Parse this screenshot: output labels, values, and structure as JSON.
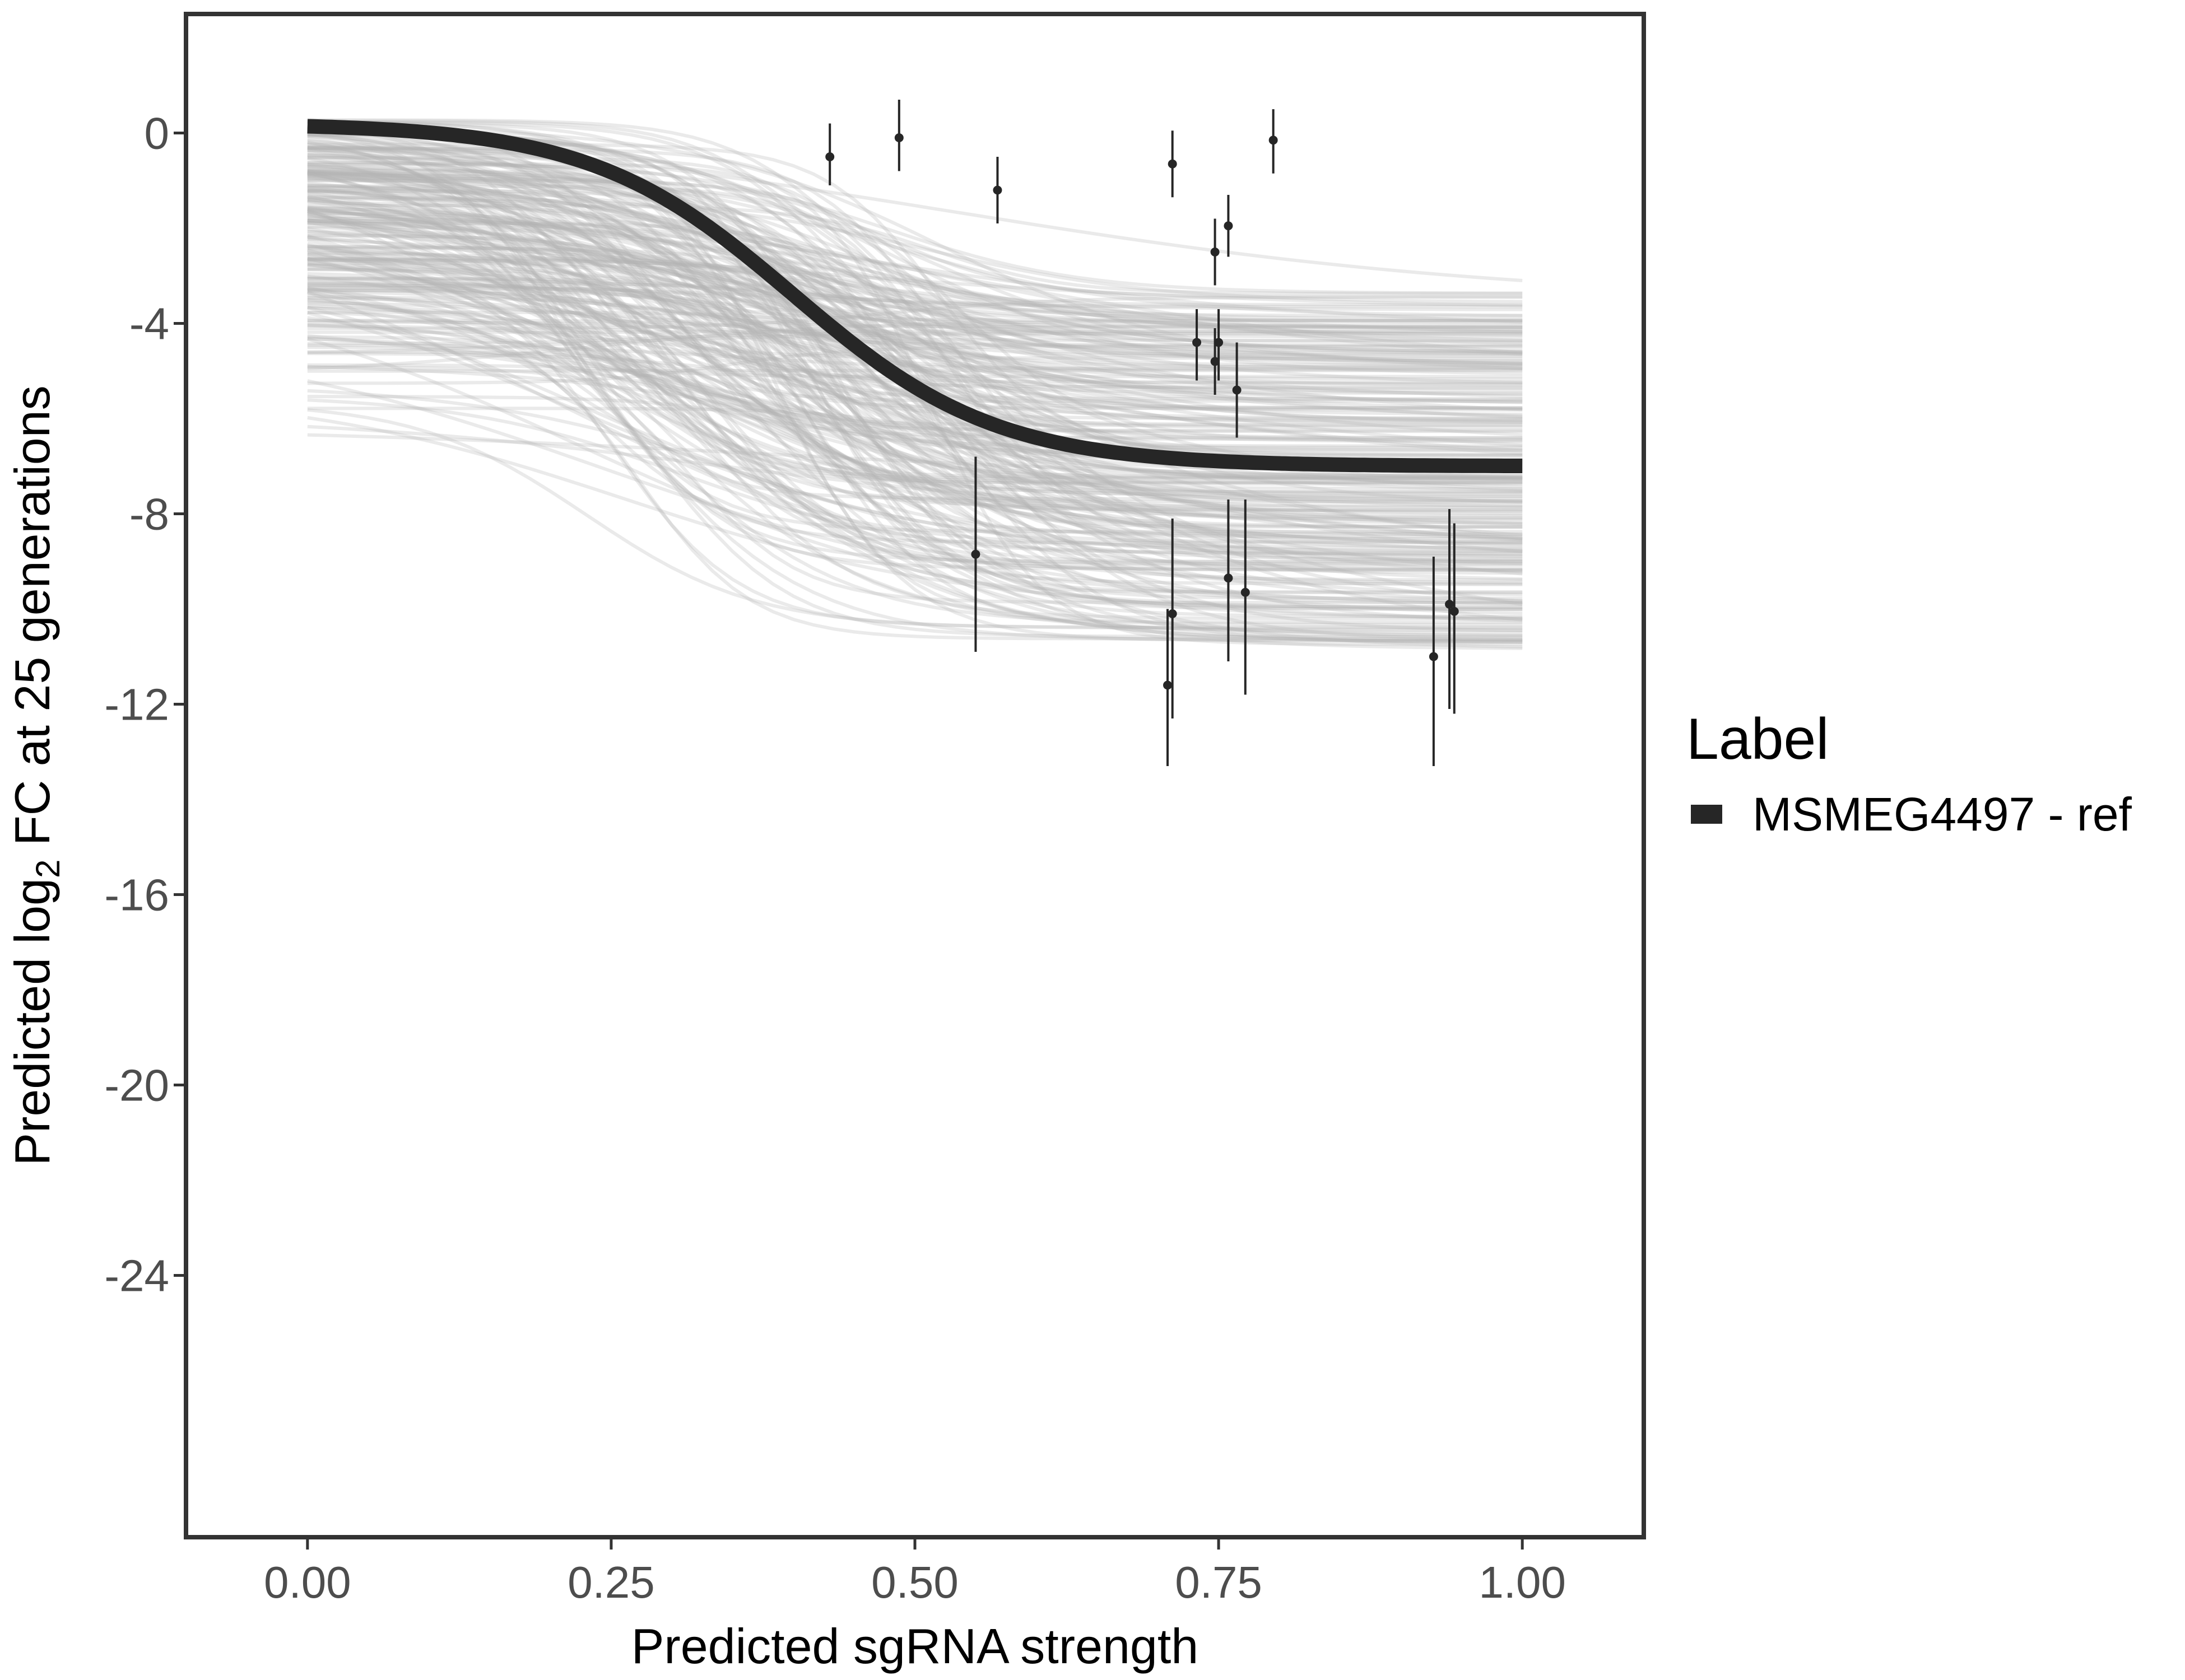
{
  "chart_data": {
    "type": "line",
    "xlabel": "Predicted sgRNA strength",
    "ylabel_prefix": "Predicted  log",
    "ylabel_subscript": "2",
    "ylabel_suffix": " FC at 25 generations",
    "xlim": [
      -0.1,
      1.1
    ],
    "ylim": [
      -29.5,
      2.5
    ],
    "x_ticks": [
      0.0,
      0.25,
      0.5,
      0.75,
      1.0
    ],
    "x_tick_labels": [
      "0.00",
      "0.25",
      "0.50",
      "0.75",
      "1.00"
    ],
    "y_ticks": [
      0,
      -4,
      -8,
      -12,
      -16,
      -20,
      -24
    ],
    "y_tick_labels": [
      "0",
      "-4",
      "-8",
      "-12",
      "-16",
      "-20",
      "-24"
    ],
    "grid": false,
    "legend": {
      "title": "Label",
      "position": "right",
      "entries": [
        {
          "label": "MSMEG4497 - ref",
          "color": "#262626"
        }
      ]
    },
    "colors": {
      "fit": "#262626",
      "draws": "#b4b4b4",
      "points": "#262626",
      "frame": "#333333"
    },
    "fit_line": {
      "name": "MSMEG4497 - ref",
      "model": "sigmoid",
      "upper": 0.2,
      "lower": -7.0,
      "midpoint": 0.4,
      "slope": 12
    },
    "posterior_draws": {
      "count": 260,
      "upper_range": [
        -6.6,
        0.35
      ],
      "lower_range": [
        -10.9,
        -3.3
      ],
      "midpoint_range": [
        0.2,
        0.55
      ],
      "slope_range": [
        4,
        22
      ]
    },
    "points": [
      {
        "x": 0.43,
        "y": -0.5,
        "ymin": -1.1,
        "ymax": 0.2
      },
      {
        "x": 0.487,
        "y": -0.1,
        "ymin": -0.8,
        "ymax": 0.7
      },
      {
        "x": 0.568,
        "y": -1.2,
        "ymin": -1.9,
        "ymax": -0.5
      },
      {
        "x": 0.55,
        "y": -8.85,
        "ymin": -10.9,
        "ymax": -6.8
      },
      {
        "x": 0.712,
        "y": -0.65,
        "ymin": -1.35,
        "ymax": 0.05
      },
      {
        "x": 0.708,
        "y": -11.6,
        "ymin": -13.3,
        "ymax": -10.0
      },
      {
        "x": 0.712,
        "y": -10.1,
        "ymin": -12.3,
        "ymax": -8.1
      },
      {
        "x": 0.732,
        "y": -4.4,
        "ymin": -5.2,
        "ymax": -3.7
      },
      {
        "x": 0.747,
        "y": -4.8,
        "ymin": -5.5,
        "ymax": -4.1
      },
      {
        "x": 0.75,
        "y": -4.4,
        "ymin": -5.2,
        "ymax": -3.7
      },
      {
        "x": 0.747,
        "y": -2.5,
        "ymin": -3.2,
        "ymax": -1.8
      },
      {
        "x": 0.758,
        "y": -1.95,
        "ymin": -2.6,
        "ymax": -1.3
      },
      {
        "x": 0.758,
        "y": -9.35,
        "ymin": -11.1,
        "ymax": -7.7
      },
      {
        "x": 0.765,
        "y": -5.4,
        "ymin": -6.4,
        "ymax": -4.4
      },
      {
        "x": 0.772,
        "y": -9.65,
        "ymin": -11.8,
        "ymax": -7.7
      },
      {
        "x": 0.795,
        "y": -0.15,
        "ymin": -0.85,
        "ymax": 0.5
      },
      {
        "x": 0.927,
        "y": -11.0,
        "ymin": -13.3,
        "ymax": -8.9
      },
      {
        "x": 0.94,
        "y": -9.9,
        "ymin": -12.1,
        "ymax": -7.9
      },
      {
        "x": 0.944,
        "y": -10.05,
        "ymin": -12.2,
        "ymax": -8.2
      }
    ]
  }
}
